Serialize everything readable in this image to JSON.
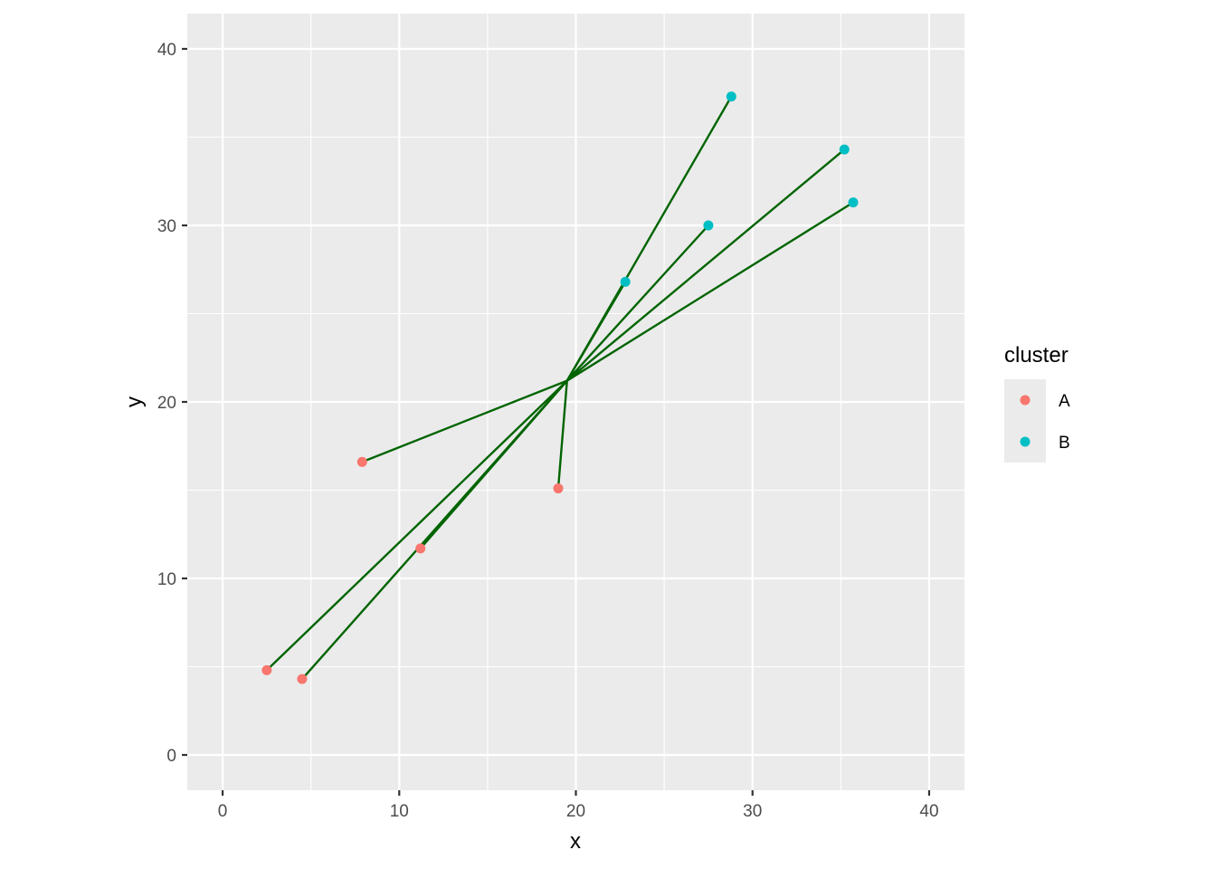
{
  "chart_data": {
    "type": "scatter",
    "title": "",
    "xlabel": "x",
    "ylabel": "y",
    "xlim": [
      -2,
      42
    ],
    "ylim": [
      -2,
      42
    ],
    "x_ticks": [
      0,
      10,
      20,
      30,
      40
    ],
    "y_ticks": [
      0,
      10,
      20,
      30,
      40
    ],
    "x_tick_labels": [
      "0",
      "10",
      "20",
      "30",
      "40"
    ],
    "y_tick_labels": [
      "0",
      "10",
      "20",
      "30",
      "40"
    ],
    "grid": true,
    "legend": {
      "title": "cluster",
      "placement": "right"
    },
    "center": {
      "x": 19.5,
      "y": 21.2
    },
    "segment_color": "#006400",
    "panel_background": "#ebebeb",
    "series": [
      {
        "name": "A",
        "color": "#F8766D",
        "points": [
          {
            "x": 2.5,
            "y": 4.8
          },
          {
            "x": 4.5,
            "y": 4.3
          },
          {
            "x": 7.9,
            "y": 16.6
          },
          {
            "x": 11.2,
            "y": 11.7
          },
          {
            "x": 19.0,
            "y": 15.1
          }
        ]
      },
      {
        "name": "B",
        "color": "#00BFC4",
        "points": [
          {
            "x": 22.8,
            "y": 26.8
          },
          {
            "x": 27.5,
            "y": 30.0
          },
          {
            "x": 28.8,
            "y": 37.3
          },
          {
            "x": 35.2,
            "y": 34.3
          },
          {
            "x": 35.7,
            "y": 31.3
          }
        ]
      }
    ]
  }
}
